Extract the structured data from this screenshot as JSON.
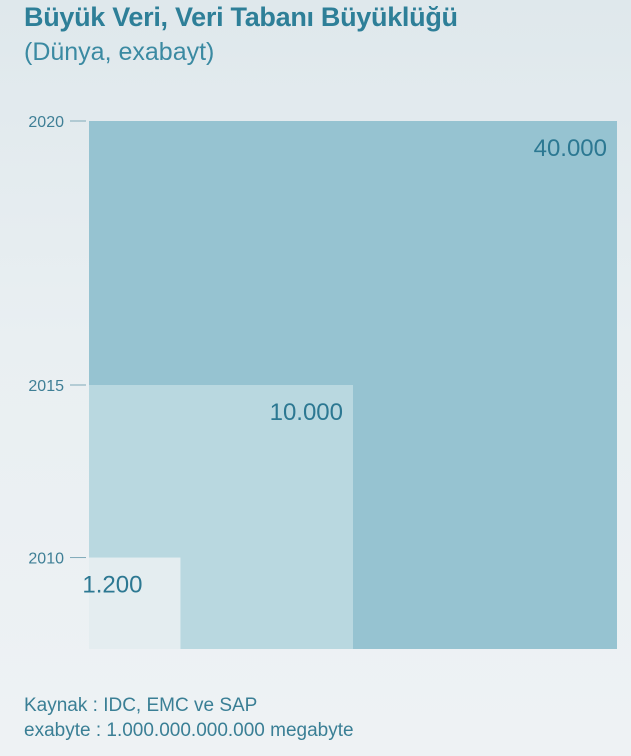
{
  "header": {
    "title": "Büyük Veri, Veri Tabanı Büyüklüğü",
    "subtitle": "(Dünya, exabayt)"
  },
  "chart_data": {
    "type": "area",
    "title": "Büyük Veri, Veri Tabanı Büyüklüğü",
    "subtitle": "(Dünya, exabayt)",
    "categories": [
      "2010",
      "2015",
      "2020"
    ],
    "values": [
      1200,
      10000,
      40000
    ],
    "value_labels": [
      "1.200",
      "10.000",
      "40.000"
    ],
    "colors": [
      "#e4edf0",
      "#b9d8e0",
      "#96c3d1"
    ],
    "legend": "none",
    "grid": false
  },
  "footer": {
    "source_line": "Kaynak : IDC, EMC ve SAP",
    "note_line": "exabyte : 1.000.000.000.000 megabyte"
  }
}
